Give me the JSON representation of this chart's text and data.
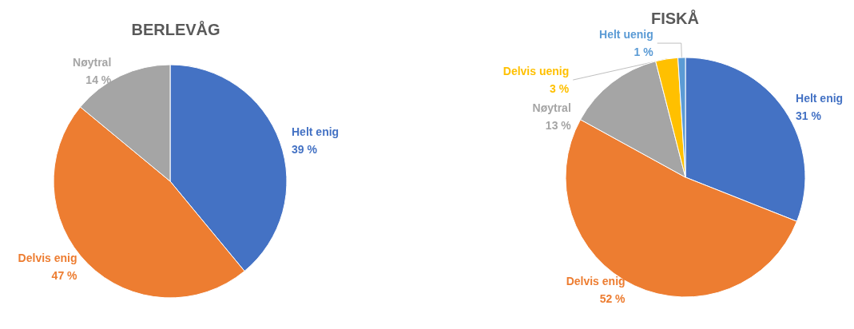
{
  "chart_data": [
    {
      "type": "pie",
      "title": "BERLEVÅG",
      "categories": [
        "Helt enig",
        "Delvis enig",
        "Nøytral"
      ],
      "values": [
        39,
        47,
        14
      ],
      "value_labels": [
        "39 %",
        "47 %",
        "14 %"
      ],
      "colors": [
        "#4472c4",
        "#ed7d31",
        "#a5a5a5"
      ],
      "legend": false
    },
    {
      "type": "pie",
      "title": "FISKÅ",
      "categories": [
        "Helt enig",
        "Delvis enig",
        "Nøytral",
        "Delvis uenig",
        "Helt uenig"
      ],
      "values": [
        31,
        52,
        13,
        3,
        1
      ],
      "value_labels": [
        "31 %",
        "52 %",
        "13 %",
        "3 %",
        "1 %"
      ],
      "colors": [
        "#4472c4",
        "#ed7d31",
        "#a5a5a5",
        "#ffc000",
        "#5b9bd5"
      ],
      "legend": false
    }
  ]
}
